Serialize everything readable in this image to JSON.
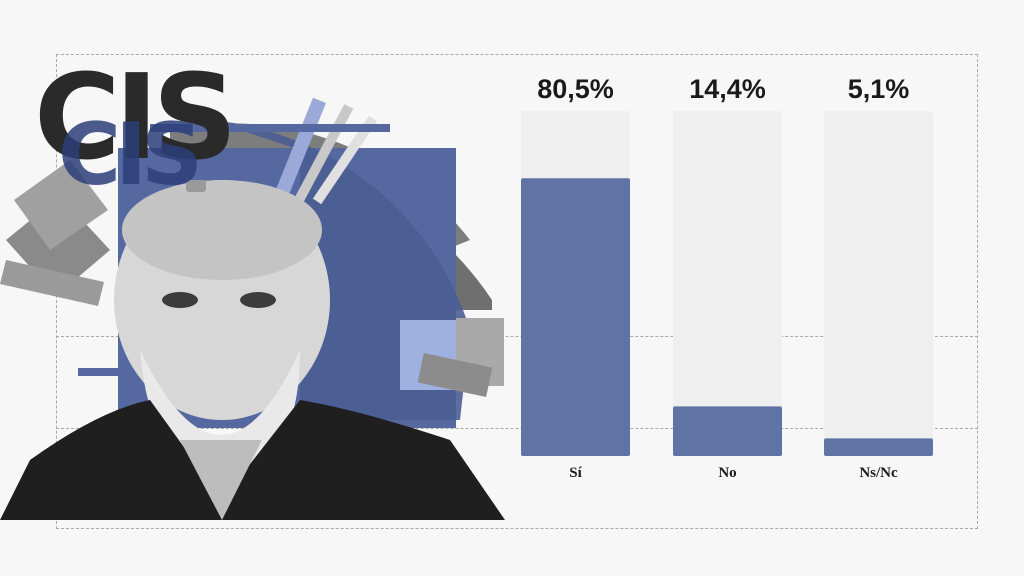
{
  "logo": {
    "text": "CIS"
  },
  "chart_data": {
    "type": "bar",
    "categories": [
      "Sí",
      "No",
      "Ns/Nc"
    ],
    "values": [
      80.5,
      14.4,
      5.1
    ],
    "value_labels": [
      "80,5%",
      "14,4%",
      "5,1%"
    ],
    "ylim": [
      0,
      100
    ],
    "grid": true,
    "colors": {
      "bar": "#5f73a5",
      "track": "#efefef"
    }
  }
}
